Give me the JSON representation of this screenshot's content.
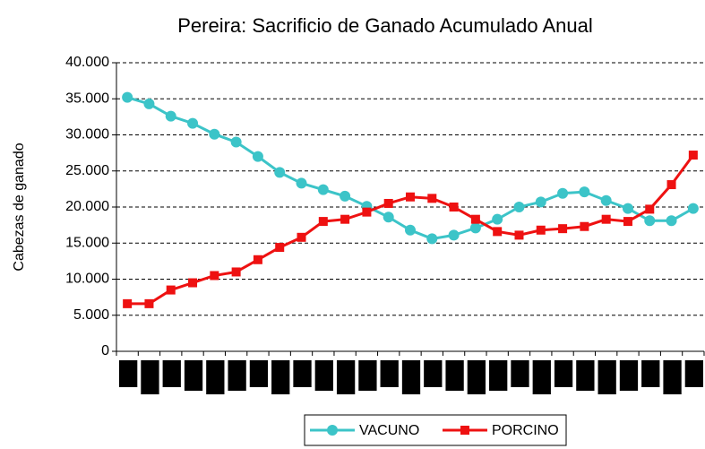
{
  "chart_data": {
    "type": "line",
    "title": "Pereira: Sacrificio de Ganado Acumulado Anual",
    "y_label": "Cabezas de ganado",
    "categories": [
      null,
      null,
      null,
      null,
      null,
      null,
      null,
      null,
      null,
      null,
      null,
      null,
      null,
      null,
      null,
      null,
      null,
      null,
      null,
      null,
      null,
      null,
      null,
      null,
      null,
      null,
      null
    ],
    "series": [
      {
        "name": "VACUNO",
        "color": "#3cc4c8",
        "marker": "circle",
        "values": [
          35200,
          34300,
          32600,
          31600,
          30100,
          29000,
          27000,
          24800,
          23300,
          22400,
          21500,
          20100,
          18600,
          16800,
          15600,
          16100,
          17100,
          18300,
          20000,
          20700,
          21900,
          22100,
          20900,
          19800,
          18100,
          18100,
          19800
        ]
      },
      {
        "name": "PORCINO",
        "color": "#ee1111",
        "marker": "square",
        "values": [
          6600,
          6600,
          8500,
          9500,
          10500,
          11000,
          12700,
          14400,
          15800,
          18000,
          18300,
          19300,
          20500,
          21400,
          21200,
          20000,
          18300,
          16600,
          16100,
          16800,
          17000,
          17300,
          18300,
          18000,
          19700,
          23100,
          27200
        ]
      }
    ],
    "ylim": [
      0,
      40000
    ],
    "yticks": [
      0,
      {
        "value": 5000,
        "label": "5.000"
      },
      {
        "value": 10000,
        "label": "10.000"
      },
      {
        "value": 15000,
        "label": "15.000"
      },
      {
        "value": 20000,
        "label": "20.000"
      },
      {
        "value": 25000,
        "label": "25.000"
      },
      {
        "value": 30000,
        "label": "30.000"
      },
      {
        "value": 35000,
        "label": "35.000"
      },
      {
        "value": 40000,
        "label": "40.000"
      }
    ],
    "grid": true
  }
}
